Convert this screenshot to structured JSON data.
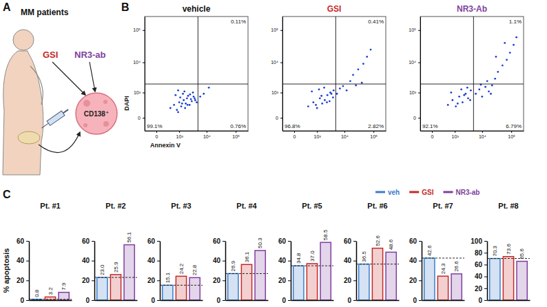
{
  "panel_labels": [
    "A",
    "B",
    "C"
  ],
  "diagram": {
    "title": "MM patients",
    "treatments": [
      {
        "name": "GSI",
        "color": "#c62828"
      },
      {
        "name": "NR3-ab",
        "color": "#7e3f9e"
      }
    ],
    "target": "CD138⁺"
  },
  "shared_legend": {
    "names": [
      "veh",
      "GSI",
      "NR3-ab"
    ],
    "colors": [
      "#3a7dc9",
      "#c62828",
      "#7e3f9e"
    ]
  },
  "chart_data": [
    {
      "type": "scatter",
      "title": "vehicle",
      "x_label": "Annexin V",
      "y_label": "DAPI",
      "log": true,
      "color": "#1b3fd1",
      "x": [
        400,
        600,
        800,
        1000,
        1200,
        1500,
        1800,
        2000,
        2500,
        3000,
        3500,
        4000,
        700,
        900,
        1100,
        1400,
        1700,
        2200,
        2800,
        3300,
        900,
        1300,
        1600,
        2100,
        2600,
        3800,
        4500,
        6000,
        8000,
        12000
      ],
      "values": [
        200,
        300,
        150,
        400,
        250,
        500,
        350,
        600,
        300,
        450,
        700,
        500,
        800,
        100,
        650,
        900,
        200,
        750,
        550,
        1000,
        1200,
        350,
        1100,
        300,
        850,
        600,
        400,
        700,
        900,
        1500
      ],
      "xlim": [
        -300,
        262144
      ],
      "ylim": [
        -300,
        262144
      ],
      "xticks": [
        0,
        {
          "value": 1000,
          "label": "10³"
        },
        {
          "value": 10000,
          "label": "10⁴"
        },
        {
          "value": 100000,
          "label": "10⁵"
        }
      ],
      "yticks": [
        0,
        {
          "value": 1000,
          "label": "10³"
        },
        {
          "value": 10000,
          "label": "10⁴"
        },
        {
          "value": 100000,
          "label": "10⁵"
        }
      ],
      "quadrant_gates": {
        "x": 5000,
        "y": 2000
      },
      "quadrant_labels": {
        "upper_right": "0.11%",
        "lower_left": "99.1%",
        "lower_right": "0.76%"
      }
    },
    {
      "type": "scatter",
      "title": "GSI",
      "log": true,
      "color": "#1b3fd1",
      "x": [
        400,
        700,
        1000,
        1300,
        1600,
        2000,
        2500,
        3000,
        3500,
        4000,
        600,
        900,
        1200,
        1500,
        1900,
        2400,
        3200,
        4200,
        5500,
        7000,
        9000,
        12000,
        16000,
        20000,
        30000,
        45000,
        60000,
        25000,
        40000,
        80000
      ],
      "values": [
        250,
        400,
        200,
        600,
        350,
        500,
        800,
        450,
        900,
        650,
        1100,
        300,
        1300,
        750,
        1500,
        400,
        1000,
        1200,
        900,
        1400,
        1700,
        1200,
        2500,
        4000,
        6000,
        9000,
        15000,
        1800,
        2200,
        25000
      ],
      "xlim": [
        -300,
        262144
      ],
      "ylim": [
        -300,
        262144
      ],
      "xticks": [
        0,
        {
          "value": 1000,
          "label": "10³"
        },
        {
          "value": 10000,
          "label": "10⁴"
        },
        {
          "value": 100000,
          "label": "10⁵"
        }
      ],
      "yticks": [
        0,
        {
          "value": 1000,
          "label": "10³"
        },
        {
          "value": 10000,
          "label": "10⁴"
        },
        {
          "value": 100000,
          "label": "10⁵"
        }
      ],
      "quadrant_gates": {
        "x": 5000,
        "y": 2000
      },
      "quadrant_labels": {
        "upper_right": "0.41%",
        "lower_left": "96.8%",
        "lower_right": "2.82%"
      }
    },
    {
      "type": "scatter",
      "title": "NR3-Ab",
      "log": true,
      "color": "#1b3fd1",
      "x": [
        500,
        800,
        1100,
        1500,
        2000,
        2600,
        3200,
        4000,
        700,
        1300,
        1800,
        2300,
        3000,
        3800,
        6000,
        8000,
        10000,
        13000,
        17000,
        22000,
        28000,
        35000,
        50000,
        70000,
        90000,
        120000,
        15000,
        30000,
        60000,
        150000,
        9000,
        20000
      ],
      "values": [
        300,
        500,
        250,
        700,
        400,
        900,
        600,
        1200,
        1000,
        350,
        1300,
        800,
        1500,
        500,
        900,
        1300,
        700,
        1600,
        1100,
        1800,
        3000,
        5000,
        8000,
        12000,
        20000,
        35000,
        2500,
        15000,
        40000,
        60000,
        1900,
        900
      ],
      "xlim": [
        -300,
        262144
      ],
      "ylim": [
        -300,
        262144
      ],
      "xticks": [
        0,
        {
          "value": 1000,
          "label": "10³"
        },
        {
          "value": 10000,
          "label": "10⁴"
        },
        {
          "value": 100000,
          "label": "10⁵"
        }
      ],
      "yticks": [
        0,
        {
          "value": 1000,
          "label": "10³"
        },
        {
          "value": 10000,
          "label": "10⁴"
        },
        {
          "value": 100000,
          "label": "10⁵"
        }
      ],
      "quadrant_gates": {
        "x": 5000,
        "y": 2000
      },
      "quadrant_labels": {
        "upper_right": "1.1%",
        "lower_left": "92.1%",
        "lower_right": "6.79%"
      }
    },
    {
      "type": "bar",
      "title": "Pt. #1",
      "y_label": "% apoptosis",
      "categories": [
        null,
        null,
        null
      ],
      "values": [
        0.8,
        3.2,
        7.9
      ],
      "colors": [
        "#3a7dc9",
        "#c62828",
        "#7e3f9e"
      ],
      "ylim": [
        0,
        60
      ],
      "yticks": [
        0,
        20,
        40,
        60
      ],
      "data_labels": true,
      "tick_labels": "y"
    },
    {
      "type": "bar",
      "title": "Pt. #2",
      "categories": [
        null,
        null,
        null
      ],
      "values": [
        23.0,
        25.9,
        56.1
      ],
      "value_labels": [
        "23.0",
        "25.9",
        "56.1"
      ],
      "colors": [
        "#3a7dc9",
        "#c62828",
        "#7e3f9e"
      ],
      "ylim": [
        0,
        60
      ],
      "yticks": [
        0,
        20,
        40,
        60
      ],
      "data_labels": true,
      "tick_labels": "y"
    },
    {
      "type": "bar",
      "title": "Pt. #3",
      "categories": [
        null,
        null,
        null
      ],
      "values": [
        15.1,
        24.2,
        22.8
      ],
      "colors": [
        "#3a7dc9",
        "#c62828",
        "#7e3f9e"
      ],
      "ylim": [
        0,
        60
      ],
      "yticks": [
        0,
        20,
        40,
        60
      ],
      "data_labels": true,
      "tick_labels": "y"
    },
    {
      "type": "bar",
      "title": "Pt. #4",
      "categories": [
        null,
        null,
        null
      ],
      "values": [
        26.9,
        36.1,
        50.3
      ],
      "colors": [
        "#3a7dc9",
        "#c62828",
        "#7e3f9e"
      ],
      "ylim": [
        0,
        60
      ],
      "yticks": [
        0,
        20,
        40,
        60
      ],
      "data_labels": true,
      "tick_labels": "y"
    },
    {
      "type": "bar",
      "title": "Pt. #5",
      "categories": [
        null,
        null,
        null
      ],
      "values": [
        34.8,
        37.0,
        58.5
      ],
      "value_labels": [
        "34.8",
        "37.0",
        "58.5"
      ],
      "colors": [
        "#3a7dc9",
        "#c62828",
        "#7e3f9e"
      ],
      "ylim": [
        0,
        60
      ],
      "yticks": [
        0,
        20,
        40,
        60
      ],
      "data_labels": true,
      "tick_labels": "y"
    },
    {
      "type": "bar",
      "title": "Pt. #6",
      "categories": [
        null,
        null,
        null
      ],
      "values": [
        36.5,
        52.6,
        48.6
      ],
      "colors": [
        "#3a7dc9",
        "#c62828",
        "#7e3f9e"
      ],
      "ylim": [
        0,
        60
      ],
      "yticks": [
        0,
        20,
        40,
        60
      ],
      "data_labels": true,
      "tick_labels": "y"
    },
    {
      "type": "bar",
      "title": "Pt. #7",
      "categories": [
        null,
        null,
        null
      ],
      "values": [
        42.6,
        24.3,
        26.6
      ],
      "colors": [
        "#3a7dc9",
        "#c62828",
        "#7e3f9e"
      ],
      "ylim": [
        0,
        60
      ],
      "yticks": [
        0,
        20,
        40,
        60
      ],
      "data_labels": true,
      "tick_labels": "y"
    },
    {
      "type": "bar",
      "title": "Pt. #8",
      "categories": [
        null,
        null,
        null
      ],
      "values": [
        70.3,
        73.6,
        65.6
      ],
      "colors": [
        "#3a7dc9",
        "#c62828",
        "#7e3f9e"
      ],
      "ylim": [
        0,
        100
      ],
      "yticks": [
        0,
        20,
        40,
        60,
        80,
        100
      ],
      "data_labels": true,
      "tick_labels": "y"
    }
  ]
}
